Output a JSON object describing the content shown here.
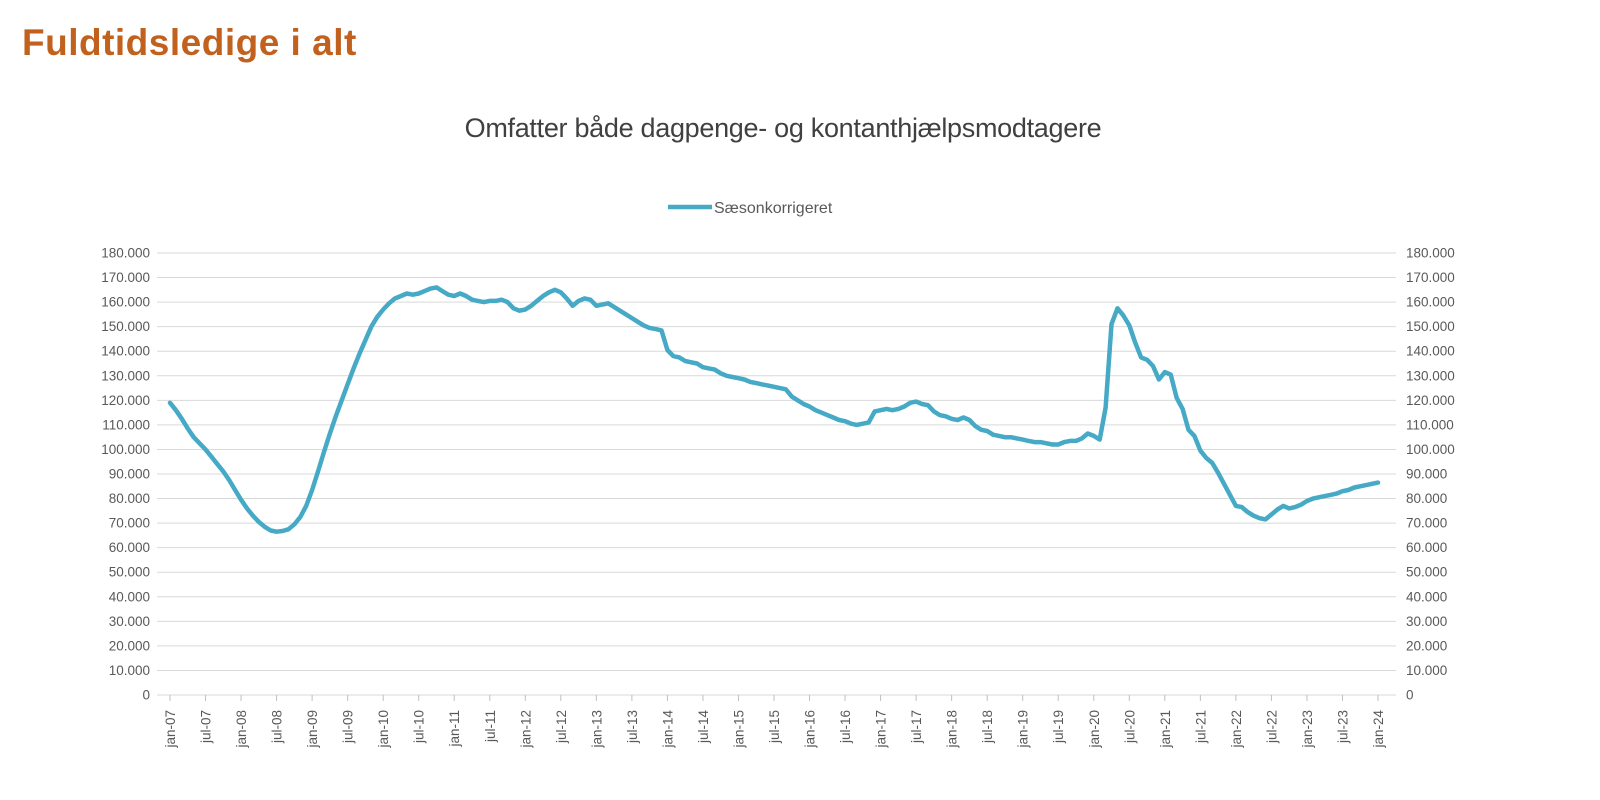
{
  "page_title": "Fuldtidsledige i alt",
  "legend": {
    "label": "Sæsonkorrigeret"
  },
  "colors": {
    "title": "#C2611E",
    "series_line": "#46A9C5",
    "subtitle_text": "#404040",
    "axis_text": "#595959",
    "gridline": "#D9D9D9",
    "tick": "#BFBFBF"
  },
  "chart_data": {
    "type": "line",
    "title": "Omfatter både dagpenge- og kontanthjælpsmodtagere",
    "legend_position": "top-center",
    "grid": "horizontal",
    "dual_y_axis": true,
    "ylim": [
      0,
      180000
    ],
    "y_tick_step": 10000,
    "y_tick_labels": [
      "0",
      "10.000",
      "20.000",
      "30.000",
      "40.000",
      "50.000",
      "60.000",
      "70.000",
      "80.000",
      "90.000",
      "100.000",
      "110.000",
      "120.000",
      "130.000",
      "140.000",
      "150.000",
      "160.000",
      "170.000",
      "180.000"
    ],
    "x_tick_every_months": 6,
    "x_tick_labels": [
      "jan-07",
      "jul-07",
      "jan-08",
      "jul-08",
      "jan-09",
      "jul-09",
      "jan-10",
      "jul-10",
      "jan-11",
      "jul-11",
      "jan-12",
      "jul-12",
      "jan-13",
      "jul-13",
      "jan-14",
      "jul-14",
      "jan-15",
      "jul-15",
      "jan-16",
      "jul-16",
      "jan-17",
      "jul-17",
      "jan-18",
      "jul-18",
      "jan-19",
      "jul-19",
      "jan-20",
      "jul-20",
      "jan-21",
      "jul-21",
      "jan-22",
      "jul-22",
      "jan-23",
      "jul-23",
      "jan-24"
    ],
    "x_monthly_range": "jan-07 to jan-24",
    "series": [
      {
        "name": "Sæsonkorrigeret",
        "color": "#46A9C5",
        "values": [
          119000,
          116000,
          112500,
          108500,
          105000,
          102500,
          100000,
          97000,
          94000,
          91000,
          87500,
          83500,
          79500,
          76000,
          73000,
          70500,
          68500,
          67000,
          66500,
          66800,
          67500,
          69500,
          72500,
          77000,
          83500,
          91000,
          99000,
          106500,
          113500,
          120000,
          126500,
          133000,
          139000,
          144500,
          150000,
          154000,
          157000,
          159500,
          161500,
          162500,
          163500,
          163000,
          163500,
          164500,
          165500,
          166000,
          164500,
          163000,
          162500,
          163500,
          162500,
          161000,
          160500,
          160000,
          160500,
          160500,
          161000,
          160000,
          157500,
          156500,
          157000,
          158500,
          160500,
          162500,
          164000,
          165000,
          164000,
          161500,
          158500,
          160500,
          161500,
          161000,
          158500,
          159000,
          159500,
          158000,
          156500,
          155000,
          153500,
          152000,
          150500,
          149500,
          149000,
          148500,
          140500,
          138000,
          137500,
          136000,
          135500,
          135000,
          133500,
          133000,
          132500,
          131000,
          130000,
          129500,
          129000,
          128500,
          127500,
          127000,
          126500,
          126000,
          125500,
          125000,
          124500,
          121500,
          120000,
          118500,
          117500,
          116000,
          115000,
          114000,
          113000,
          112000,
          111500,
          110500,
          110000,
          110500,
          111000,
          115500,
          116000,
          116500,
          116000,
          116500,
          117500,
          119000,
          119500,
          118500,
          118000,
          115500,
          114000,
          113500,
          112500,
          112000,
          113000,
          112000,
          109500,
          108000,
          107500,
          106000,
          105500,
          105000,
          105000,
          104500,
          104000,
          103500,
          103000,
          103000,
          102500,
          102000,
          102000,
          103000,
          103500,
          103500,
          104500,
          106500,
          105500,
          104000,
          117000,
          151000,
          157500,
          154500,
          150500,
          143500,
          137500,
          136500,
          134000,
          128500,
          131500,
          130500,
          121000,
          116500,
          108000,
          105500,
          99500,
          96500,
          94500,
          90500,
          86000,
          81500,
          77000,
          76500,
          74500,
          73000,
          72000,
          71500,
          73500,
          75500,
          77000,
          76000,
          76500,
          77500,
          79000,
          80000,
          80500,
          81000,
          81500,
          82000,
          83000,
          83500,
          84500,
          85000,
          85500,
          86000,
          86500
        ]
      }
    ]
  }
}
